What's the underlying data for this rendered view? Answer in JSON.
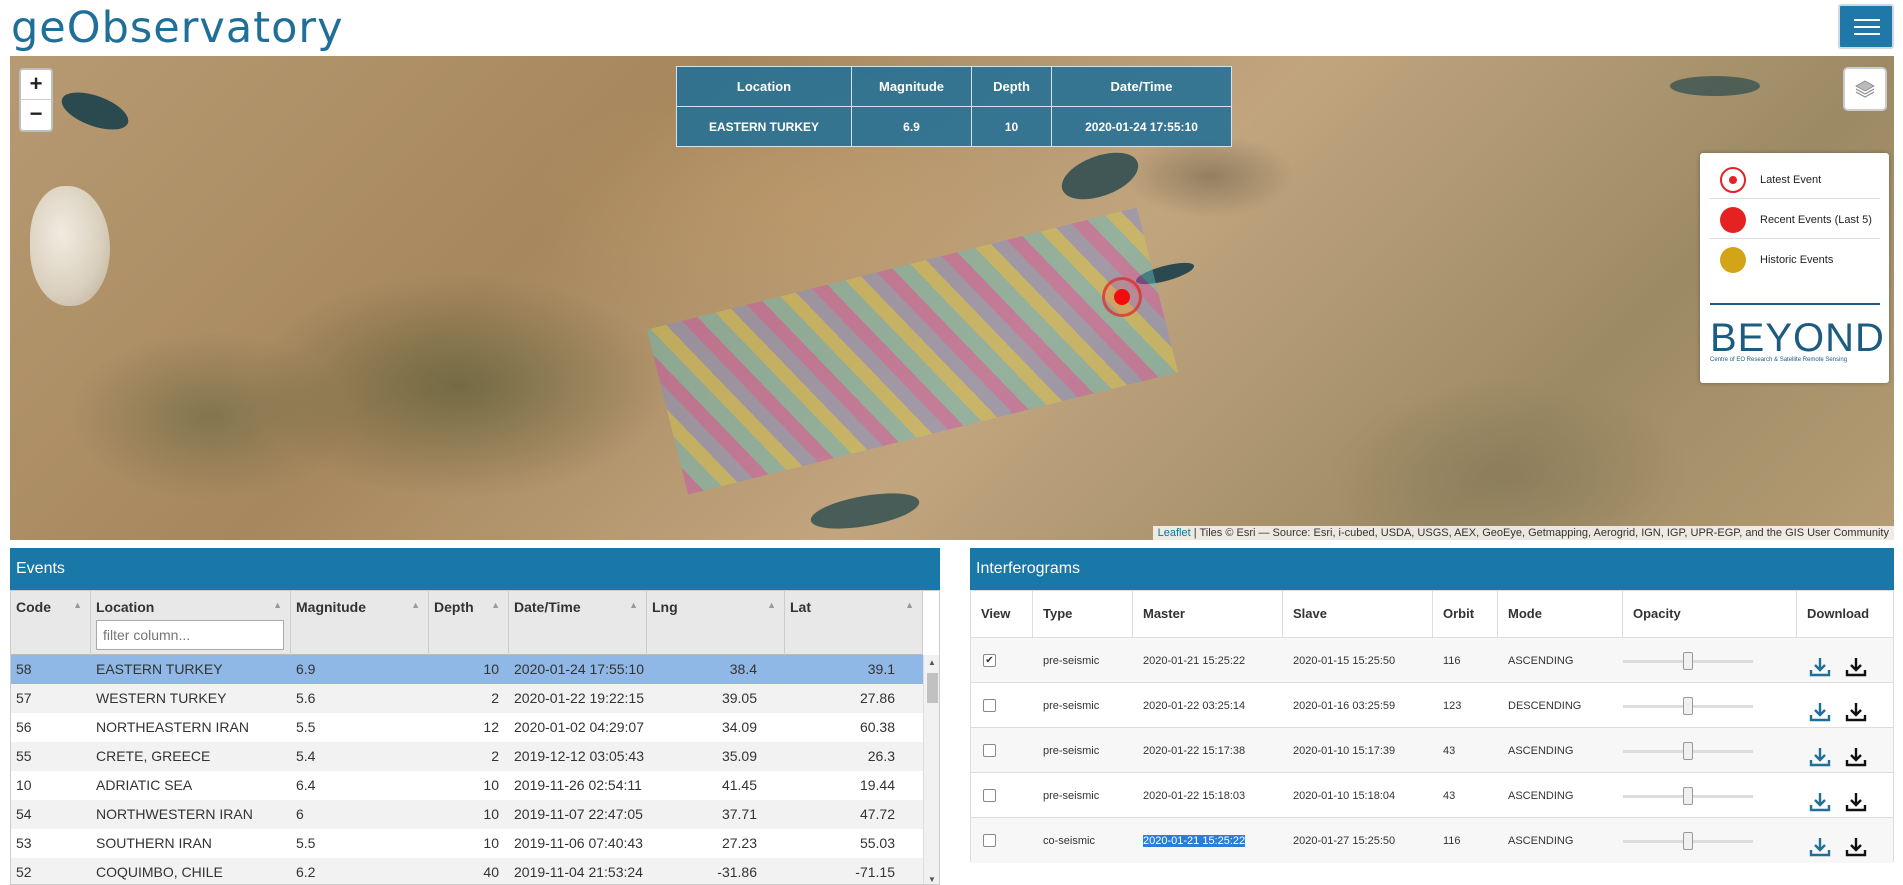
{
  "app": {
    "logo": "geObservatory"
  },
  "map": {
    "zoom_in": "+",
    "zoom_out": "−",
    "event_table": {
      "headers": [
        "Location",
        "Magnitude",
        "Depth",
        "Date/Time"
      ],
      "row": [
        "EASTERN TURKEY",
        "6.9",
        "10",
        "2020-01-24 17:55:10"
      ]
    },
    "legend": {
      "items": [
        {
          "label": "Latest Event",
          "icon": "latest-event-icon",
          "color": "#e52222"
        },
        {
          "label": "Recent Events (Last 5)",
          "icon": "recent-event-icon",
          "color": "#e52222"
        },
        {
          "label": "Historic Events",
          "icon": "historic-event-icon",
          "color": "#d4a418"
        }
      ],
      "logo_title": "BEYOND",
      "logo_subtitle": "Centre of EO Research & Satellite Remote Sensing"
    },
    "attribution_link": "Leaflet",
    "attribution_text": " | Tiles © Esri — Source: Esri, i-cubed, USDA, USGS, AEX, GeoEye, Getmapping, Aerogrid, IGN, IGP, UPR-EGP, and the GIS User Community"
  },
  "events": {
    "title": "Events",
    "filter_placeholder": "filter column...",
    "columns": [
      "Code",
      "Location",
      "Magnitude",
      "Depth",
      "Date/Time",
      "Lng",
      "Lat"
    ],
    "rows": [
      {
        "code": "58",
        "location": "EASTERN TURKEY",
        "magnitude": "6.9",
        "depth": "10",
        "datetime": "2020-01-24 17:55:10",
        "lng": "38.4",
        "lat": "39.1"
      },
      {
        "code": "57",
        "location": "WESTERN TURKEY",
        "magnitude": "5.6",
        "depth": "2",
        "datetime": "2020-01-22 19:22:15",
        "lng": "39.05",
        "lat": "27.86"
      },
      {
        "code": "56",
        "location": "NORTHEASTERN IRAN",
        "magnitude": "5.5",
        "depth": "12",
        "datetime": "2020-01-02 04:29:07",
        "lng": "34.09",
        "lat": "60.38"
      },
      {
        "code": "55",
        "location": "CRETE, GREECE",
        "magnitude": "5.4",
        "depth": "2",
        "datetime": "2019-12-12 03:05:43",
        "lng": "35.09",
        "lat": "26.3"
      },
      {
        "code": "10",
        "location": "ADRIATIC SEA",
        "magnitude": "6.4",
        "depth": "10",
        "datetime": "2019-11-26 02:54:11",
        "lng": "41.45",
        "lat": "19.44"
      },
      {
        "code": "54",
        "location": "NORTHWESTERN IRAN",
        "magnitude": "6",
        "depth": "10",
        "datetime": "2019-11-07 22:47:05",
        "lng": "37.71",
        "lat": "47.72"
      },
      {
        "code": "53",
        "location": "SOUTHERN IRAN",
        "magnitude": "5.5",
        "depth": "10",
        "datetime": "2019-11-06 07:40:43",
        "lng": "27.23",
        "lat": "55.03"
      },
      {
        "code": "52",
        "location": "COQUIMBO, CHILE",
        "magnitude": "6.2",
        "depth": "40",
        "datetime": "2019-11-04 21:53:24",
        "lng": "-31.86",
        "lat": "-71.15"
      }
    ]
  },
  "interferograms": {
    "title": "Interferograms",
    "columns": [
      "View",
      "Type",
      "Master",
      "Slave",
      "Orbit",
      "Mode",
      "Opacity",
      "Download"
    ],
    "rows": [
      {
        "checked": "✔",
        "type": "pre-seismic",
        "master": "2020-01-21 15:25:22",
        "slave": "2020-01-15 15:25:50",
        "orbit": "116",
        "mode": "ASCENDING"
      },
      {
        "checked": "",
        "type": "pre-seismic",
        "master": "2020-01-22 03:25:14",
        "slave": "2020-01-16 03:25:59",
        "orbit": "123",
        "mode": "DESCENDING"
      },
      {
        "checked": "",
        "type": "pre-seismic",
        "master": "2020-01-22 15:17:38",
        "slave": "2020-01-10 15:17:39",
        "orbit": "43",
        "mode": "ASCENDING"
      },
      {
        "checked": "",
        "type": "pre-seismic",
        "master": "2020-01-22 15:18:03",
        "slave": "2020-01-10 15:18:04",
        "orbit": "43",
        "mode": "ASCENDING"
      },
      {
        "checked": "",
        "type": "co-seismic",
        "master": "2020-01-21 15:25:22",
        "slave": "2020-01-27 15:25:50",
        "orbit": "116",
        "mode": "ASCENDING"
      }
    ]
  }
}
